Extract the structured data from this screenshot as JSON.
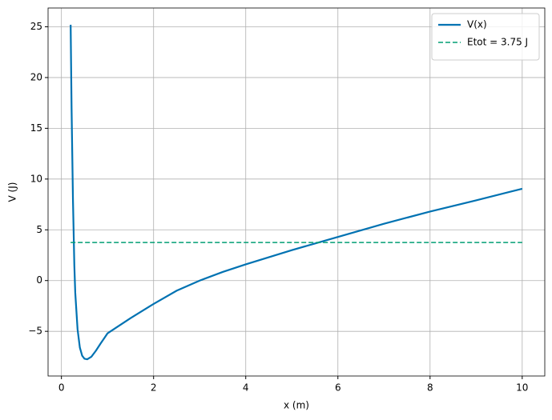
{
  "chart_data": {
    "type": "line",
    "xlabel": "x (m)",
    "ylabel": "V (J)",
    "series": [
      {
        "name": "V(x)",
        "color": "#0072b2",
        "dashed": false,
        "x": [
          0.2,
          0.22,
          0.25,
          0.28,
          0.3,
          0.35,
          0.4,
          0.45,
          0.5,
          0.56,
          0.65,
          0.75,
          0.85,
          1.0,
          1.2,
          1.5,
          2,
          2.5,
          3,
          3.5,
          4,
          5,
          6,
          7,
          8,
          9,
          10
        ],
        "values": [
          25.2,
          17,
          8,
          1.5,
          -1.2,
          -4.8,
          -6.6,
          -7.4,
          -7.7,
          -7.75,
          -7.5,
          -6.9,
          -6.2,
          -5.2,
          -4.6,
          -3.7,
          -2.3,
          -1.0,
          0,
          0.85,
          1.6,
          3.0,
          4.3,
          5.6,
          6.8,
          7.9,
          9.05
        ]
      },
      {
        "name": "Etot = 3.75 J",
        "color": "#009e73",
        "dashed": true,
        "x": [
          0.2,
          10
        ],
        "values": [
          3.75,
          3.75
        ]
      }
    ],
    "xlim": [
      -0.29,
      10.49
    ],
    "ylim": [
      -9.4,
      26.85
    ],
    "xticks": [
      0,
      2,
      4,
      6,
      8,
      10
    ],
    "yticks": [
      {
        "value": -5,
        "label": "−5"
      },
      0,
      5,
      10,
      15,
      20,
      25
    ],
    "grid": true,
    "legend": "upper right"
  }
}
